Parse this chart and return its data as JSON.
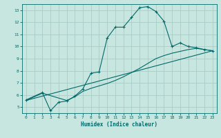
{
  "title": "",
  "xlabel": "Humidex (Indice chaleur)",
  "bg_color": "#c8e6e0",
  "grid_color": "#a8ccc8",
  "line_color": "#006868",
  "xlim": [
    -0.5,
    23.5
  ],
  "ylim": [
    4.5,
    13.5
  ],
  "xticks": [
    0,
    1,
    2,
    3,
    4,
    5,
    6,
    7,
    8,
    9,
    10,
    11,
    12,
    13,
    14,
    15,
    16,
    17,
    18,
    19,
    20,
    21,
    22,
    23
  ],
  "yticks": [
    5,
    6,
    7,
    8,
    9,
    10,
    11,
    12,
    13
  ],
  "curve1_x": [
    0,
    2,
    3,
    4,
    5,
    6,
    7,
    8,
    9,
    10,
    11,
    12,
    13,
    14,
    15,
    16,
    17,
    18,
    19,
    20,
    21,
    22,
    23
  ],
  "curve1_y": [
    5.6,
    6.2,
    4.7,
    5.4,
    5.5,
    5.9,
    6.5,
    7.8,
    7.9,
    10.7,
    11.6,
    11.6,
    12.4,
    13.2,
    13.3,
    12.9,
    12.1,
    10.0,
    10.3,
    10.0,
    9.9,
    9.75,
    9.65
  ],
  "curve2_x": [
    0,
    2,
    5,
    6,
    7,
    8,
    9,
    10,
    11,
    12,
    13,
    14,
    15,
    16,
    17,
    18,
    19,
    20,
    21,
    22,
    23
  ],
  "curve2_y": [
    5.55,
    6.15,
    5.55,
    5.85,
    6.3,
    6.55,
    6.75,
    6.95,
    7.2,
    7.5,
    7.85,
    8.2,
    8.6,
    9.0,
    9.25,
    9.45,
    9.6,
    9.75,
    9.85,
    9.75,
    9.65
  ],
  "curve3_x": [
    0,
    23
  ],
  "curve3_y": [
    5.55,
    9.65
  ]
}
